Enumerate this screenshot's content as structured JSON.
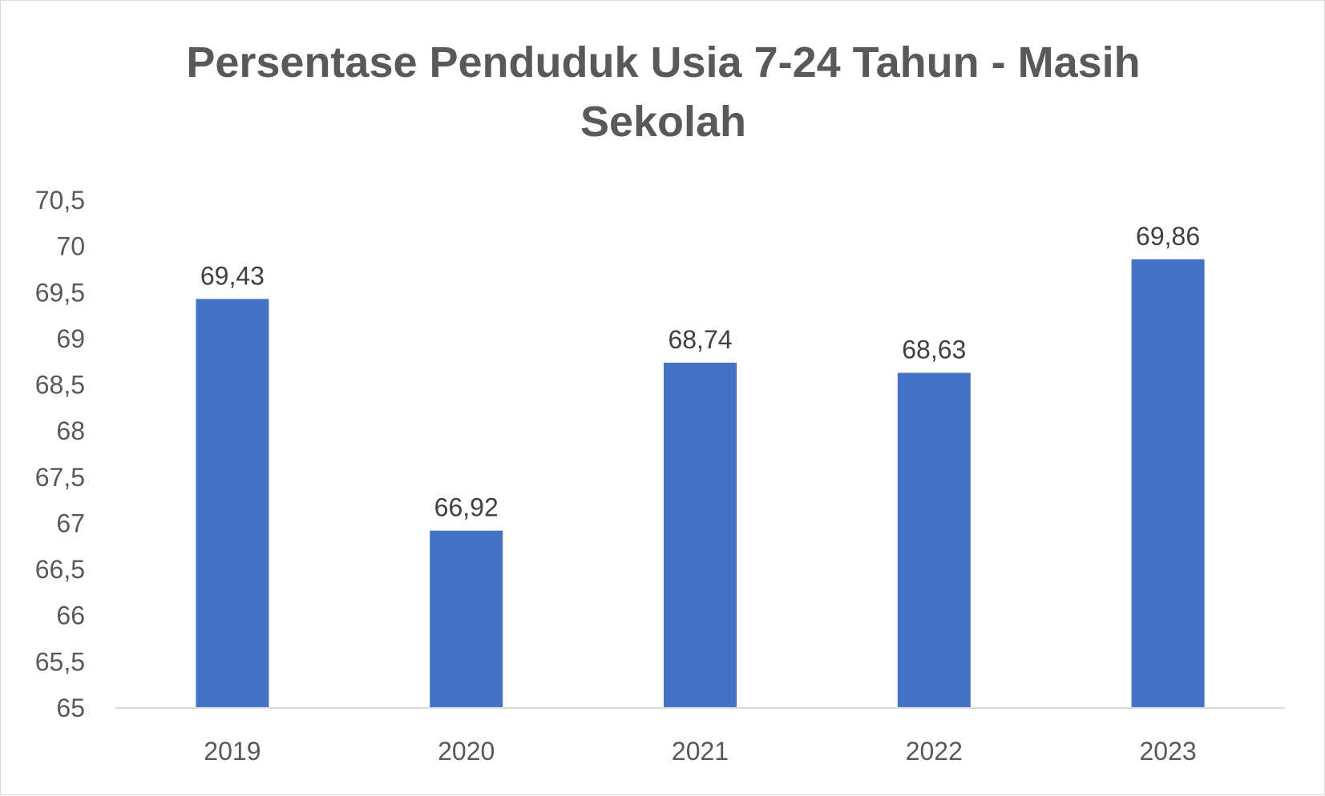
{
  "chart_data": {
    "type": "bar",
    "title": "Persentase Penduduk Usia 7-24 Tahun - Masih Sekolah",
    "categories": [
      "2019",
      "2020",
      "2021",
      "2022",
      "2023"
    ],
    "values": [
      69.43,
      66.92,
      68.74,
      68.63,
      69.86
    ],
    "data_labels": [
      "69,43",
      "66,92",
      "68,74",
      "68,63",
      "69,86"
    ],
    "ylim": [
      65,
      70.5
    ],
    "y_ticks": [
      65,
      65.5,
      66,
      66.5,
      67,
      67.5,
      68,
      68.5,
      69,
      69.5,
      70,
      70.5
    ],
    "y_tick_labels": [
      "65",
      "65,5",
      "66",
      "66,5",
      "67",
      "67,5",
      "68",
      "68,5",
      "69",
      "69,5",
      "70",
      "70,5"
    ],
    "bar_color": "#4472c4",
    "grid": false,
    "legend": "none"
  }
}
